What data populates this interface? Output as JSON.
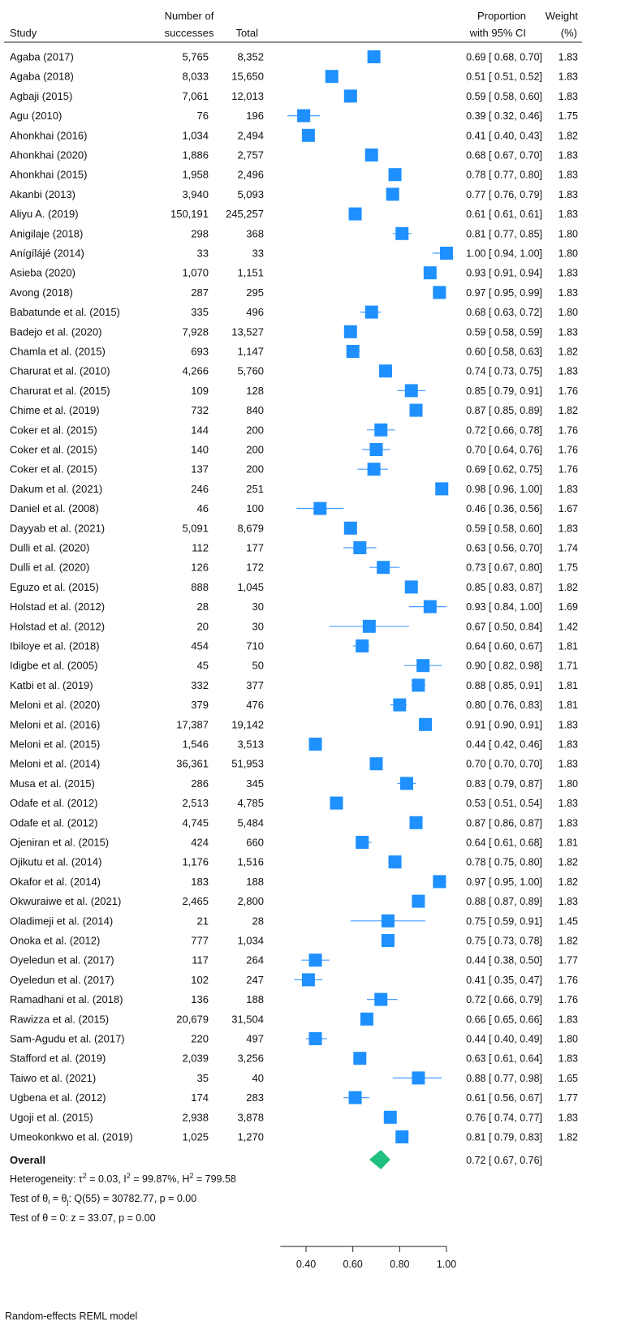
{
  "chart_data": {
    "type": "forest",
    "columns": {
      "study": "Study",
      "successes_line1": "Number of",
      "successes_line2": "successes",
      "total": "Total",
      "ci_line1": "Proportion",
      "ci_line2": "with 95% CI",
      "weight_line1": "Weight",
      "weight_line2": "(%)"
    },
    "x_axis": {
      "range": [
        0.29,
        1.0
      ],
      "ticks": [
        0.4,
        0.6,
        0.8,
        1.0
      ],
      "tick_labels": [
        "0.40",
        "0.60",
        "0.80",
        "1.00"
      ]
    },
    "colors": {
      "marker": "#1e90ff",
      "line": "#4a9eff",
      "overall": "#20c080"
    },
    "studies": [
      {
        "study": "Agaba (2017)",
        "successes": "5,765",
        "total": "8,352",
        "est": 0.69,
        "lo": 0.68,
        "hi": 0.7,
        "ci_text": "0.69 [ 0.68, 0.70]",
        "weight": "1.83"
      },
      {
        "study": "Agaba (2018)",
        "successes": "8,033",
        "total": "15,650",
        "est": 0.51,
        "lo": 0.51,
        "hi": 0.52,
        "ci_text": "0.51 [ 0.51, 0.52]",
        "weight": "1.83"
      },
      {
        "study": "Agbaji (2015)",
        "successes": "7,061",
        "total": "12,013",
        "est": 0.59,
        "lo": 0.58,
        "hi": 0.6,
        "ci_text": "0.59 [ 0.58, 0.60]",
        "weight": "1.83"
      },
      {
        "study": "Agu (2010)",
        "successes": "76",
        "total": "196",
        "est": 0.39,
        "lo": 0.32,
        "hi": 0.46,
        "ci_text": "0.39 [ 0.32, 0.46]",
        "weight": "1.75"
      },
      {
        "study": "Ahonkhai (2016)",
        "successes": "1,034",
        "total": "2,494",
        "est": 0.41,
        "lo": 0.4,
        "hi": 0.43,
        "ci_text": "0.41 [ 0.40, 0.43]",
        "weight": "1.82"
      },
      {
        "study": "Ahonkhai (2020)",
        "successes": "1,886",
        "total": "2,757",
        "est": 0.68,
        "lo": 0.67,
        "hi": 0.7,
        "ci_text": "0.68 [ 0.67, 0.70]",
        "weight": "1.83"
      },
      {
        "study": "Ahonkhai (2015)",
        "successes": "1,958",
        "total": "2,496",
        "est": 0.78,
        "lo": 0.77,
        "hi": 0.8,
        "ci_text": "0.78 [ 0.77, 0.80]",
        "weight": "1.83"
      },
      {
        "study": "Akanbi (2013)",
        "successes": "3,940",
        "total": "5,093",
        "est": 0.77,
        "lo": 0.76,
        "hi": 0.79,
        "ci_text": "0.77 [ 0.76, 0.79]",
        "weight": "1.83"
      },
      {
        "study": "Aliyu A. (2019)",
        "successes": "150,191",
        "total": "245,257",
        "est": 0.61,
        "lo": 0.61,
        "hi": 0.61,
        "ci_text": "0.61 [ 0.61, 0.61]",
        "weight": "1.83"
      },
      {
        "study": "Anigilaje (2018)",
        "successes": "298",
        "total": "368",
        "est": 0.81,
        "lo": 0.77,
        "hi": 0.85,
        "ci_text": "0.81 [ 0.77, 0.85]",
        "weight": "1.80"
      },
      {
        "study": "Anígílájé (2014)",
        "successes": "33",
        "total": "33",
        "est": 1.0,
        "lo": 0.94,
        "hi": 1.0,
        "ci_text": "1.00 [ 0.94, 1.00]",
        "weight": "1.80"
      },
      {
        "study": "Asieba (2020)",
        "successes": "1,070",
        "total": "1,151",
        "est": 0.93,
        "lo": 0.91,
        "hi": 0.94,
        "ci_text": "0.93 [ 0.91, 0.94]",
        "weight": "1.83"
      },
      {
        "study": "Avong (2018)",
        "successes": "287",
        "total": "295",
        "est": 0.97,
        "lo": 0.95,
        "hi": 0.99,
        "ci_text": "0.97 [ 0.95, 0.99]",
        "weight": "1.83"
      },
      {
        "study": "Babatunde et al. (2015)",
        "successes": "335",
        "total": "496",
        "est": 0.68,
        "lo": 0.63,
        "hi": 0.72,
        "ci_text": "0.68 [ 0.63, 0.72]",
        "weight": "1.80"
      },
      {
        "study": "Badejo et al. (2020)",
        "successes": "7,928",
        "total": "13,527",
        "est": 0.59,
        "lo": 0.58,
        "hi": 0.59,
        "ci_text": "0.59 [ 0.58, 0.59]",
        "weight": "1.83"
      },
      {
        "study": "Chamla et al. (2015)",
        "successes": "693",
        "total": "1,147",
        "est": 0.6,
        "lo": 0.58,
        "hi": 0.63,
        "ci_text": "0.60 [ 0.58, 0.63]",
        "weight": "1.82"
      },
      {
        "study": "Charurat et al. (2010)",
        "successes": "4,266",
        "total": "5,760",
        "est": 0.74,
        "lo": 0.73,
        "hi": 0.75,
        "ci_text": "0.74 [ 0.73, 0.75]",
        "weight": "1.83"
      },
      {
        "study": "Charurat et al. (2015)",
        "successes": "109",
        "total": "128",
        "est": 0.85,
        "lo": 0.79,
        "hi": 0.91,
        "ci_text": "0.85 [ 0.79, 0.91]",
        "weight": "1.76"
      },
      {
        "study": "Chime et al. (2019)",
        "successes": "732",
        "total": "840",
        "est": 0.87,
        "lo": 0.85,
        "hi": 0.89,
        "ci_text": "0.87 [ 0.85, 0.89]",
        "weight": "1.82"
      },
      {
        "study": "Coker et al. (2015)",
        "successes": "144",
        "total": "200",
        "est": 0.72,
        "lo": 0.66,
        "hi": 0.78,
        "ci_text": "0.72 [ 0.66, 0.78]",
        "weight": "1.76"
      },
      {
        "study": "Coker et al. (2015)",
        "successes": "140",
        "total": "200",
        "est": 0.7,
        "lo": 0.64,
        "hi": 0.76,
        "ci_text": "0.70 [ 0.64, 0.76]",
        "weight": "1.76"
      },
      {
        "study": "Coker et al. (2015)",
        "successes": "137",
        "total": "200",
        "est": 0.69,
        "lo": 0.62,
        "hi": 0.75,
        "ci_text": "0.69 [ 0.62, 0.75]",
        "weight": "1.76"
      },
      {
        "study": "Dakum et al. (2021)",
        "successes": "246",
        "total": "251",
        "est": 0.98,
        "lo": 0.96,
        "hi": 1.0,
        "ci_text": "0.98 [ 0.96, 1.00]",
        "weight": "1.83"
      },
      {
        "study": "Daniel et al. (2008)",
        "successes": "46",
        "total": "100",
        "est": 0.46,
        "lo": 0.36,
        "hi": 0.56,
        "ci_text": "0.46 [ 0.36, 0.56]",
        "weight": "1.67"
      },
      {
        "study": "Dayyab et al. (2021)",
        "successes": "5,091",
        "total": "8,679",
        "est": 0.59,
        "lo": 0.58,
        "hi": 0.6,
        "ci_text": "0.59 [ 0.58, 0.60]",
        "weight": "1.83"
      },
      {
        "study": "Dulli et al. (2020)",
        "successes": "112",
        "total": "177",
        "est": 0.63,
        "lo": 0.56,
        "hi": 0.7,
        "ci_text": "0.63 [ 0.56, 0.70]",
        "weight": "1.74"
      },
      {
        "study": "Dulli et al. (2020)",
        "successes": "126",
        "total": "172",
        "est": 0.73,
        "lo": 0.67,
        "hi": 0.8,
        "ci_text": "0.73 [ 0.67, 0.80]",
        "weight": "1.75"
      },
      {
        "study": "Eguzo et al. (2015)",
        "successes": "888",
        "total": "1,045",
        "est": 0.85,
        "lo": 0.83,
        "hi": 0.87,
        "ci_text": "0.85 [ 0.83, 0.87]",
        "weight": "1.82"
      },
      {
        "study": "Holstad et al. (2012)",
        "successes": "28",
        "total": "30",
        "est": 0.93,
        "lo": 0.84,
        "hi": 1.0,
        "ci_text": "0.93 [ 0.84, 1.00]",
        "weight": "1.69"
      },
      {
        "study": "Holstad et al. (2012)",
        "successes": "20",
        "total": "30",
        "est": 0.67,
        "lo": 0.5,
        "hi": 0.84,
        "ci_text": "0.67 [ 0.50, 0.84]",
        "weight": "1.42"
      },
      {
        "study": "Ibiloye et al. (2018)",
        "successes": "454",
        "total": "710",
        "est": 0.64,
        "lo": 0.6,
        "hi": 0.67,
        "ci_text": "0.64 [ 0.60, 0.67]",
        "weight": "1.81"
      },
      {
        "study": "Idigbe et al. (2005)",
        "successes": "45",
        "total": "50",
        "est": 0.9,
        "lo": 0.82,
        "hi": 0.98,
        "ci_text": "0.90 [ 0.82, 0.98]",
        "weight": "1.71"
      },
      {
        "study": "Katbi et al. (2019)",
        "successes": "332",
        "total": "377",
        "est": 0.88,
        "lo": 0.85,
        "hi": 0.91,
        "ci_text": "0.88 [ 0.85, 0.91]",
        "weight": "1.81"
      },
      {
        "study": "Meloni et al. (2020)",
        "successes": "379",
        "total": "476",
        "est": 0.8,
        "lo": 0.76,
        "hi": 0.83,
        "ci_text": "0.80 [ 0.76, 0.83]",
        "weight": "1.81"
      },
      {
        "study": "Meloni et al. (2016)",
        "successes": "17,387",
        "total": "19,142",
        "est": 0.91,
        "lo": 0.9,
        "hi": 0.91,
        "ci_text": "0.91 [ 0.90, 0.91]",
        "weight": "1.83"
      },
      {
        "study": "Meloni et al. (2015)",
        "successes": "1,546",
        "total": "3,513",
        "est": 0.44,
        "lo": 0.42,
        "hi": 0.46,
        "ci_text": "0.44 [ 0.42, 0.46]",
        "weight": "1.83"
      },
      {
        "study": "Meloni et al. (2014)",
        "successes": "36,361",
        "total": "51,953",
        "est": 0.7,
        "lo": 0.7,
        "hi": 0.7,
        "ci_text": "0.70 [ 0.70, 0.70]",
        "weight": "1.83"
      },
      {
        "study": "Musa et al. (2015)",
        "successes": "286",
        "total": "345",
        "est": 0.83,
        "lo": 0.79,
        "hi": 0.87,
        "ci_text": "0.83 [ 0.79, 0.87]",
        "weight": "1.80"
      },
      {
        "study": "Odafe et al. (2012)",
        "successes": "2,513",
        "total": "4,785",
        "est": 0.53,
        "lo": 0.51,
        "hi": 0.54,
        "ci_text": "0.53 [ 0.51, 0.54]",
        "weight": "1.83"
      },
      {
        "study": "Odafe et al. (2012)",
        "successes": "4,745",
        "total": "5,484",
        "est": 0.87,
        "lo": 0.86,
        "hi": 0.87,
        "ci_text": "0.87 [ 0.86, 0.87]",
        "weight": "1.83"
      },
      {
        "study": "Ojeniran et al.  (2015)",
        "successes": "424",
        "total": "660",
        "est": 0.64,
        "lo": 0.61,
        "hi": 0.68,
        "ci_text": "0.64 [ 0.61, 0.68]",
        "weight": "1.81"
      },
      {
        "study": "Ojikutu et al. (2014)",
        "successes": "1,176",
        "total": "1,516",
        "est": 0.78,
        "lo": 0.75,
        "hi": 0.8,
        "ci_text": "0.78 [ 0.75, 0.80]",
        "weight": "1.82"
      },
      {
        "study": "Okafor et al. (2014)",
        "successes": "183",
        "total": "188",
        "est": 0.97,
        "lo": 0.95,
        "hi": 1.0,
        "ci_text": "0.97 [ 0.95, 1.00]",
        "weight": "1.82"
      },
      {
        "study": "Okwuraiwe et al. (2021)",
        "successes": "2,465",
        "total": "2,800",
        "est": 0.88,
        "lo": 0.87,
        "hi": 0.89,
        "ci_text": "0.88 [ 0.87, 0.89]",
        "weight": "1.83"
      },
      {
        "study": "Oladimeji et al. (2014)",
        "successes": "21",
        "total": "28",
        "est": 0.75,
        "lo": 0.59,
        "hi": 0.91,
        "ci_text": "0.75 [ 0.59, 0.91]",
        "weight": "1.45"
      },
      {
        "study": "Onoka et al. (2012)",
        "successes": "777",
        "total": "1,034",
        "est": 0.75,
        "lo": 0.73,
        "hi": 0.78,
        "ci_text": "0.75 [ 0.73, 0.78]",
        "weight": "1.82"
      },
      {
        "study": "Oyeledun et al. (2017)",
        "successes": "117",
        "total": "264",
        "est": 0.44,
        "lo": 0.38,
        "hi": 0.5,
        "ci_text": "0.44 [ 0.38, 0.50]",
        "weight": "1.77"
      },
      {
        "study": "Oyeledun et al. (2017)",
        "successes": "102",
        "total": "247",
        "est": 0.41,
        "lo": 0.35,
        "hi": 0.47,
        "ci_text": "0.41 [ 0.35, 0.47]",
        "weight": "1.76"
      },
      {
        "study": "Ramadhani et al. (2018)",
        "successes": "136",
        "total": "188",
        "est": 0.72,
        "lo": 0.66,
        "hi": 0.79,
        "ci_text": "0.72 [ 0.66, 0.79]",
        "weight": "1.76"
      },
      {
        "study": "Rawizza et al. (2015)",
        "successes": "20,679",
        "total": "31,504",
        "est": 0.66,
        "lo": 0.65,
        "hi": 0.66,
        "ci_text": "0.66 [ 0.65, 0.66]",
        "weight": "1.83"
      },
      {
        "study": "Sam-Agudu et al. (2017)",
        "successes": "220",
        "total": "497",
        "est": 0.44,
        "lo": 0.4,
        "hi": 0.49,
        "ci_text": "0.44 [ 0.40, 0.49]",
        "weight": "1.80"
      },
      {
        "study": "Stafford et al. (2019)",
        "successes": "2,039",
        "total": "3,256",
        "est": 0.63,
        "lo": 0.61,
        "hi": 0.64,
        "ci_text": "0.63 [ 0.61, 0.64]",
        "weight": "1.83"
      },
      {
        "study": "Taiwo et al. (2021)",
        "successes": "35",
        "total": "40",
        "est": 0.88,
        "lo": 0.77,
        "hi": 0.98,
        "ci_text": "0.88 [ 0.77, 0.98]",
        "weight": "1.65"
      },
      {
        "study": "Ugbena et al. (2012)",
        "successes": "174",
        "total": "283",
        "est": 0.61,
        "lo": 0.56,
        "hi": 0.67,
        "ci_text": "0.61 [ 0.56, 0.67]",
        "weight": "1.77"
      },
      {
        "study": "Ugoji et al. (2015)",
        "successes": "2,938",
        "total": "3,878",
        "est": 0.76,
        "lo": 0.74,
        "hi": 0.77,
        "ci_text": "0.76 [ 0.74, 0.77]",
        "weight": "1.83"
      },
      {
        "study": "Umeokonkwo et al. (2019)",
        "successes": "1,025",
        "total": "1,270",
        "est": 0.81,
        "lo": 0.79,
        "hi": 0.83,
        "ci_text": "0.81 [ 0.79, 0.83]",
        "weight": "1.82"
      }
    ],
    "overall": {
      "label": "Overall",
      "est": 0.72,
      "lo": 0.67,
      "hi": 0.76,
      "ci_text": "0.72 [ 0.67, 0.76]"
    },
    "heterogeneity": {
      "prefix": "Heterogeneity: τ",
      "sup1": "2",
      "mid1": " = 0.03, I",
      "sup2": "2",
      "mid2": " = 99.87%, H",
      "sup3": "2",
      "end": " = 799.58"
    },
    "test_theta_i": {
      "prefix": "Test of θ",
      "sub1": "i",
      "mid": " = θ",
      "sub2": "j",
      "end": ": Q(55) = 30782.77, p = 0.00"
    },
    "test_theta_0": "Test of θ = 0: z = 33.07, p = 0.00",
    "model_note": "Random-effects REML model"
  }
}
